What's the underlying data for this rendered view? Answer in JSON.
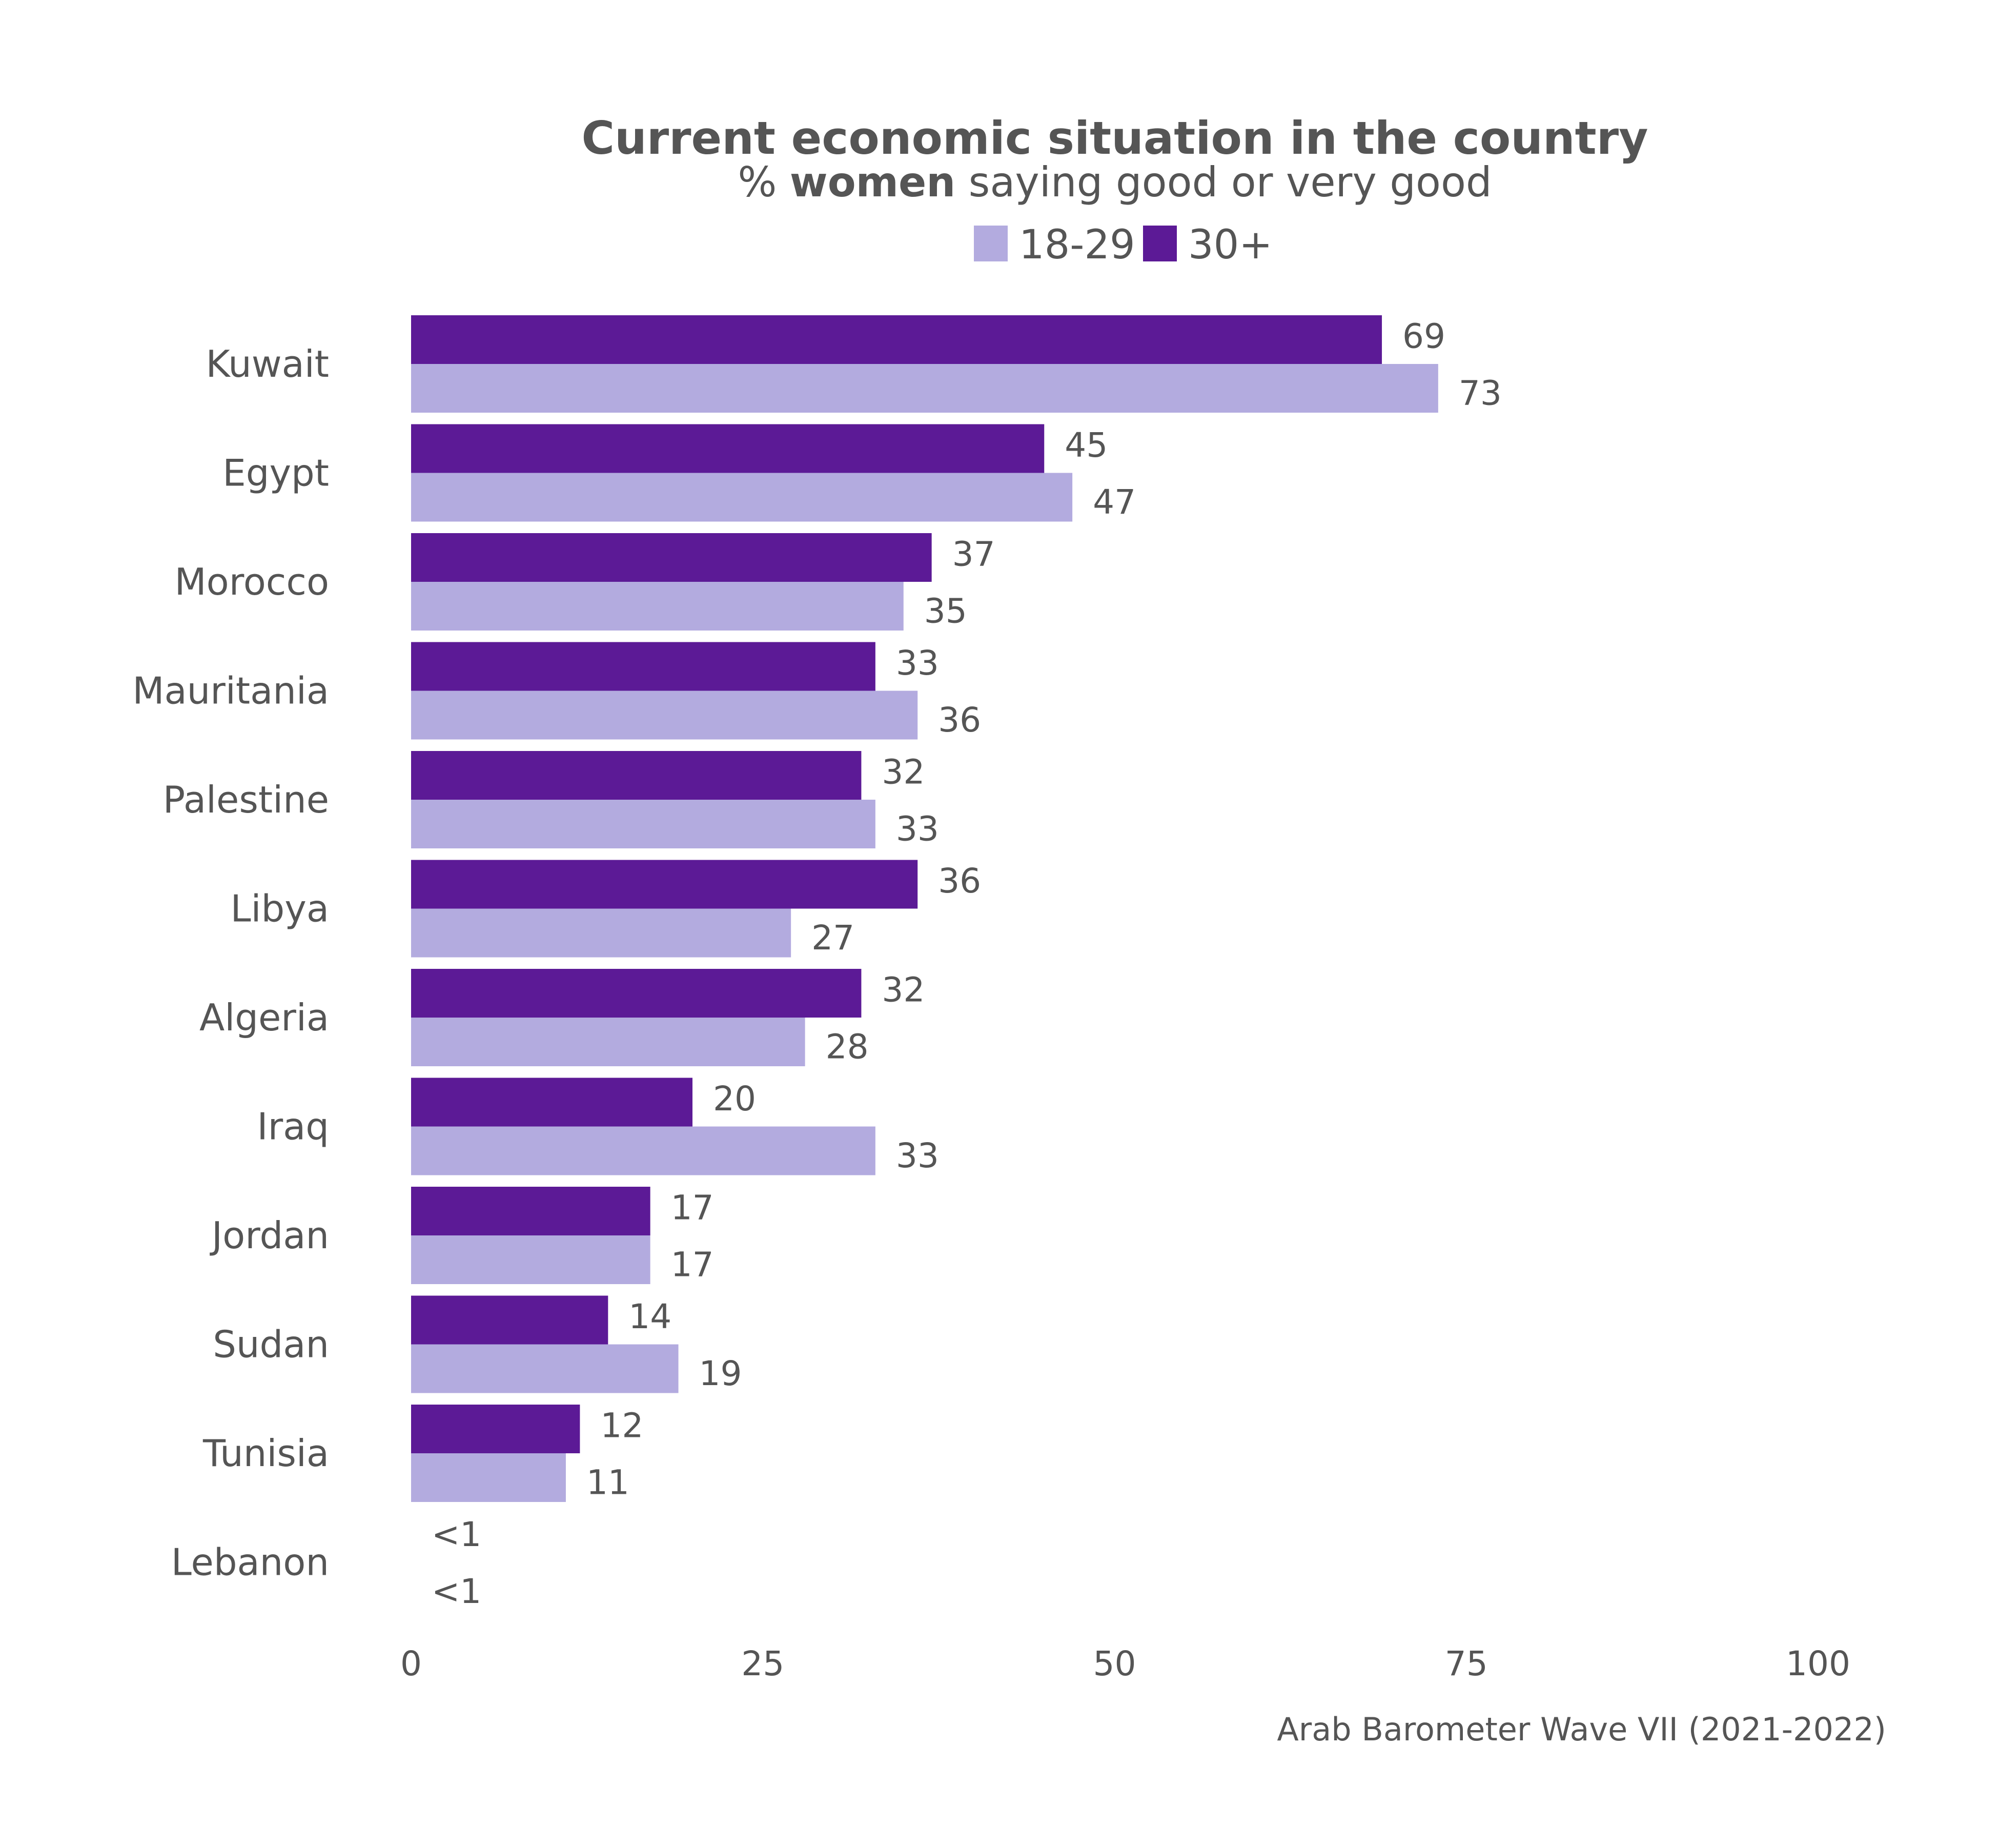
{
  "chart_data": {
    "type": "bar",
    "orientation": "horizontal",
    "title": "Current economic situation in the country",
    "subtitle": {
      "prefix": "% ",
      "bold": "women",
      "suffix": " saying good or very good"
    },
    "caption": "Arab Barometer Wave VII (2021-2022)",
    "categories": [
      "Kuwait",
      "Egypt",
      "Morocco",
      "Mauritania",
      "Palestine",
      "Libya",
      "Algeria",
      "Iraq",
      "Jordan",
      "Sudan",
      "Tunisia",
      "Lebanon"
    ],
    "series": [
      {
        "name": "30+",
        "color": "#5c1a96",
        "values": [
          69,
          45,
          37,
          33,
          32,
          36,
          32,
          20,
          17,
          14,
          12,
          0
        ],
        "labels": [
          "69",
          "45",
          "37",
          "33",
          "32",
          "36",
          "32",
          "20",
          "17",
          "14",
          "12",
          "<1"
        ]
      },
      {
        "name": "18-29",
        "color": "#b3abdf",
        "values": [
          73,
          47,
          35,
          36,
          33,
          27,
          28,
          33,
          17,
          19,
          11,
          0
        ],
        "labels": [
          "73",
          "47",
          "35",
          "36",
          "33",
          "27",
          "28",
          "33",
          "17",
          "19",
          "11",
          "<1"
        ]
      }
    ],
    "legend": {
      "position": "top",
      "items": [
        {
          "name": "18-29",
          "color": "#b3abdf"
        },
        {
          "name": "30+",
          "color": "#5c1a96"
        }
      ]
    },
    "xlim": [
      0,
      100
    ],
    "xticks": [
      "0",
      "25",
      "50",
      "75",
      "100"
    ],
    "xtick_values": [
      0,
      25,
      50,
      75,
      100
    ],
    "grid": false
  }
}
